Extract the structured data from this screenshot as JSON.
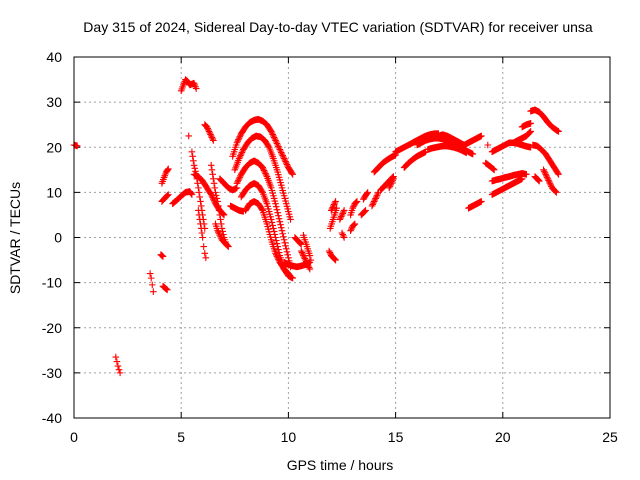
{
  "chart_data": {
    "type": "scatter",
    "title": "Day 315 of 2024, Sidereal Day-to-day VTEC variation (SDTVAR) for receiver unsa",
    "xlabel": "GPS time / hours",
    "ylabel": "SDTVAR / TECUs",
    "xlim": [
      0,
      25
    ],
    "ylim": [
      -40,
      40
    ],
    "xticks": [
      0,
      5,
      10,
      15,
      20,
      25
    ],
    "yticks": [
      -40,
      -30,
      -20,
      -10,
      0,
      10,
      20,
      30,
      40
    ],
    "x_tick_labels": [
      "0",
      "5",
      "10",
      "15",
      "20",
      "25"
    ],
    "y_tick_labels": [
      "-40",
      "-30",
      "-20",
      "-10",
      "0",
      "10",
      "20",
      "30",
      "40"
    ],
    "grid": true,
    "marker": "+",
    "marker_color": "#ff0000",
    "segments": [
      {
        "x": [
          0.0,
          0.15
        ],
        "y": [
          20.5,
          20.3
        ]
      },
      {
        "x": [
          1.95,
          2.0,
          2.05,
          2.1,
          2.15
        ],
        "y": [
          -26.5,
          -27.5,
          -28.5,
          -29.3,
          -30.0
        ]
      },
      {
        "x": [
          3.55,
          3.6,
          3.65,
          3.7
        ],
        "y": [
          -8.0,
          -9.0,
          -10.5,
          -12.0
        ]
      },
      {
        "x": [
          4.05,
          4.15
        ],
        "y": [
          -3.8,
          -4.2
        ]
      },
      {
        "x": [
          4.15,
          4.25,
          4.35
        ],
        "y": [
          -10.8,
          -11.2,
          -11.6
        ]
      },
      {
        "x": [
          4.1,
          4.2,
          4.3,
          4.4
        ],
        "y": [
          12.0,
          13.3,
          14.5,
          15.2
        ]
      },
      {
        "x": [
          4.1,
          4.25,
          4.4
        ],
        "y": [
          8.0,
          8.8,
          9.5
        ]
      },
      {
        "x": [
          4.6,
          4.8,
          5.0,
          5.2,
          5.4,
          5.5
        ],
        "y": [
          7.5,
          8.3,
          9.2,
          10.0,
          10.2,
          9.5
        ]
      },
      {
        "x": [
          5.0,
          5.1,
          5.2,
          5.3,
          5.4,
          5.6,
          5.7
        ],
        "y": [
          32.5,
          33.8,
          35.0,
          34.6,
          33.8,
          34.2,
          33.0
        ]
      },
      {
        "x": [
          5.35
        ],
        "y": [
          22.5
        ]
      },
      {
        "x": [
          5.5,
          5.6,
          5.7,
          5.8,
          5.9,
          6.0,
          6.1
        ],
        "y": [
          19.0,
          16.0,
          14.0,
          11.0,
          8.0,
          5.0,
          2.0
        ]
      },
      {
        "x": [
          5.8,
          5.9,
          6.0,
          6.05,
          6.1,
          6.15
        ],
        "y": [
          6.0,
          3.0,
          0.0,
          -2.0,
          -3.5,
          -4.5
        ]
      },
      {
        "x": [
          5.6,
          5.8,
          6.0,
          6.2,
          6.4,
          6.6,
          6.8,
          7.0
        ],
        "y": [
          14.0,
          13.5,
          12.5,
          11.0,
          9.5,
          7.5,
          6.0,
          5.0
        ]
      },
      {
        "x": [
          6.1,
          6.2,
          6.3,
          6.4,
          6.5
        ],
        "y": [
          25.0,
          24.5,
          23.5,
          22.5,
          21.5
        ]
      },
      {
        "x": [
          6.4,
          6.5,
          6.6,
          6.7,
          6.8,
          6.9,
          7.0,
          7.1
        ],
        "y": [
          16.0,
          13.0,
          10.0,
          8.0,
          5.0,
          2.0,
          0.0,
          -1.5
        ]
      },
      {
        "x": [
          6.6,
          6.7,
          6.8,
          6.9,
          7.0,
          7.1,
          7.2
        ],
        "y": [
          3.0,
          1.5,
          0.5,
          -0.5,
          -1.0,
          -1.5,
          -2.0
        ]
      },
      {
        "x": [
          6.8,
          7.0,
          7.2,
          7.4,
          7.6
        ],
        "y": [
          13.0,
          12.0,
          11.0,
          10.5,
          11.0
        ]
      },
      {
        "x": [
          7.3,
          7.5,
          7.7,
          7.9
        ],
        "y": [
          7.0,
          6.5,
          6.0,
          5.8
        ]
      },
      {
        "x": [
          7.4,
          7.6,
          7.8,
          8.0,
          8.2,
          8.4,
          8.6,
          8.8,
          9.0,
          9.2,
          9.4,
          9.6,
          9.8,
          10.0,
          10.2
        ],
        "y": [
          18.0,
          21.0,
          23.0,
          24.5,
          25.5,
          26.0,
          26.2,
          25.8,
          25.0,
          23.5,
          21.5,
          19.5,
          17.5,
          15.5,
          14.0
        ]
      },
      {
        "x": [
          7.5,
          7.7,
          7.9,
          8.1,
          8.3,
          8.5,
          8.7,
          8.9,
          9.1,
          9.3,
          9.5,
          9.7,
          9.9,
          10.1
        ],
        "y": [
          15.0,
          17.5,
          19.5,
          21.0,
          22.0,
          22.5,
          22.3,
          21.5,
          20.0,
          17.5,
          14.5,
          11.0,
          7.5,
          4.0
        ]
      },
      {
        "x": [
          7.6,
          7.8,
          8.0,
          8.2,
          8.4,
          8.6,
          8.8,
          9.0,
          9.2,
          9.4,
          9.6,
          9.8,
          10.0,
          10.1
        ],
        "y": [
          12.0,
          14.0,
          15.5,
          16.5,
          17.0,
          16.5,
          15.5,
          13.5,
          11.0,
          7.5,
          3.5,
          -0.5,
          -4.5,
          -6.5
        ]
      },
      {
        "x": [
          7.8,
          8.0,
          8.2,
          8.4,
          8.6,
          8.8,
          9.0,
          9.2,
          9.4,
          9.6,
          9.8,
          10.0,
          10.2
        ],
        "y": [
          9.0,
          10.5,
          11.5,
          12.0,
          11.5,
          10.0,
          7.5,
          4.0,
          0.0,
          -4.0,
          -7.0,
          -8.5,
          -9.0
        ]
      },
      {
        "x": [
          8.0,
          8.2,
          8.4,
          8.6,
          8.8,
          9.0,
          9.2,
          9.4,
          9.6,
          9.8,
          10.0
        ],
        "y": [
          6.0,
          7.5,
          8.0,
          7.5,
          6.0,
          3.0,
          -0.5,
          -3.5,
          -5.5,
          -7.0,
          -8.0
        ]
      },
      {
        "x": [
          9.8,
          10.0,
          10.2,
          10.4,
          10.6,
          10.8,
          11.0
        ],
        "y": [
          -5.5,
          -6.0,
          -6.3,
          -6.5,
          -6.3,
          -6.0,
          -5.5
        ]
      },
      {
        "x": [
          10.3,
          10.4,
          10.5,
          10.6
        ],
        "y": [
          0.0,
          -0.5,
          -1.0,
          -1.5
        ]
      },
      {
        "x": [
          10.6,
          10.7,
          10.8,
          10.9,
          11.0
        ],
        "y": [
          -3.0,
          -4.0,
          -5.0,
          -6.0,
          -7.0
        ]
      },
      {
        "x": [
          10.7,
          10.8,
          10.9,
          11.0,
          11.05
        ],
        "y": [
          0.5,
          -1.0,
          -2.5,
          -4.0,
          -5.0
        ]
      },
      {
        "x": [
          11.9,
          12.0,
          12.1,
          12.2
        ],
        "y": [
          -3.0,
          -4.0,
          -4.5,
          -5.0
        ]
      },
      {
        "x": [
          11.95,
          12.05,
          12.15,
          12.25
        ],
        "y": [
          2.0,
          3.5,
          5.0,
          6.5
        ]
      },
      {
        "x": [
          12.0,
          12.1,
          12.2
        ],
        "y": [
          6.0,
          7.0,
          8.0
        ]
      },
      {
        "x": [
          12.4,
          12.5,
          12.6
        ],
        "y": [
          4.0,
          5.0,
          6.0
        ]
      },
      {
        "x": [
          12.5,
          12.6
        ],
        "y": [
          1.0,
          0.0
        ]
      },
      {
        "x": [
          12.9,
          13.0,
          13.1
        ],
        "y": [
          1.5,
          2.5,
          3.0
        ]
      },
      {
        "x": [
          12.9,
          13.0,
          13.1,
          13.2
        ],
        "y": [
          5.0,
          6.5,
          7.5,
          8.0
        ]
      },
      {
        "x": [
          13.4,
          13.5,
          13.6
        ],
        "y": [
          5.0,
          5.5,
          6.0
        ]
      },
      {
        "x": [
          13.5,
          13.6,
          13.7
        ],
        "y": [
          8.5,
          9.3,
          10.0
        ]
      },
      {
        "x": [
          13.9,
          14.0,
          14.1,
          14.2
        ],
        "y": [
          7.0,
          8.0,
          9.0,
          10.0
        ]
      },
      {
        "x": [
          14.0,
          14.2,
          14.4,
          14.6,
          14.8,
          15.0
        ],
        "y": [
          14.5,
          15.5,
          16.5,
          17.2,
          17.8,
          18.3
        ]
      },
      {
        "x": [
          14.3,
          14.5,
          14.7,
          14.9
        ],
        "y": [
          10.5,
          11.5,
          12.5,
          13.5
        ]
      },
      {
        "x": [
          14.7,
          14.8,
          14.9
        ],
        "y": [
          11.0,
          12.0,
          13.0
        ]
      },
      {
        "x": [
          15.0,
          15.2,
          15.4,
          15.6,
          15.8,
          16.0,
          16.2,
          16.4,
          16.6,
          16.8,
          17.0
        ],
        "y": [
          19.0,
          19.5,
          20.0,
          20.5,
          21.0,
          21.5,
          22.0,
          22.5,
          22.8,
          23.0,
          23.0
        ]
      },
      {
        "x": [
          15.4,
          15.6,
          15.8,
          16.0,
          16.2,
          16.4
        ],
        "y": [
          15.5,
          16.5,
          17.3,
          18.0,
          18.5,
          19.0
        ]
      },
      {
        "x": [
          16.0,
          16.2,
          16.4,
          16.6,
          16.8,
          17.0,
          17.2,
          17.4,
          17.6,
          17.8,
          18.0,
          18.2,
          18.4,
          18.6
        ],
        "y": [
          20.5,
          21.0,
          21.5,
          21.8,
          22.0,
          22.0,
          21.8,
          21.5,
          21.0,
          20.5,
          20.0,
          19.5,
          19.0,
          18.5
        ]
      },
      {
        "x": [
          16.5,
          16.7,
          16.9,
          17.1,
          17.3,
          17.5,
          17.7,
          17.9,
          18.1,
          18.3
        ],
        "y": [
          19.5,
          19.8,
          20.0,
          20.2,
          20.3,
          20.2,
          20.0,
          19.7,
          19.3,
          18.8
        ]
      },
      {
        "x": [
          17.0,
          17.2,
          17.4,
          17.6,
          17.8,
          18.0,
          18.2,
          18.4,
          18.6,
          18.8,
          19.0
        ],
        "y": [
          22.5,
          22.8,
          22.5,
          22.0,
          21.5,
          21.0,
          20.5,
          21.0,
          21.5,
          22.0,
          22.5
        ]
      },
      {
        "x": [
          18.4,
          18.6,
          18.8,
          19.0
        ],
        "y": [
          6.5,
          7.0,
          7.5,
          8.0
        ]
      },
      {
        "x": [
          19.2,
          19.4,
          19.6
        ],
        "y": [
          16.5,
          15.8,
          15.0
        ]
      },
      {
        "x": [
          19.3
        ],
        "y": [
          20.5
        ]
      },
      {
        "x": [
          19.5,
          19.7,
          19.9,
          20.1,
          20.3,
          20.5,
          20.7,
          20.9,
          21.1,
          21.3
        ],
        "y": [
          19.0,
          19.5,
          20.0,
          20.5,
          21.0,
          21.0,
          20.8,
          20.5,
          20.2,
          20.0
        ]
      },
      {
        "x": [
          19.5,
          19.7,
          19.9,
          20.1,
          20.3,
          20.5,
          20.7,
          20.9,
          21.1
        ],
        "y": [
          12.5,
          12.8,
          13.0,
          13.3,
          13.5,
          13.8,
          14.0,
          14.2,
          14.0
        ]
      },
      {
        "x": [
          19.5,
          19.7,
          19.9,
          20.1,
          20.3,
          20.5,
          20.7,
          20.9
        ],
        "y": [
          9.5,
          10.0,
          10.5,
          11.0,
          11.5,
          12.0,
          12.5,
          13.0
        ]
      },
      {
        "x": [
          20.5,
          20.7,
          20.9,
          21.1,
          21.2,
          21.3
        ],
        "y": [
          21.0,
          21.5,
          22.0,
          22.5,
          23.0,
          23.5
        ]
      },
      {
        "x": [
          21.3,
          21.5,
          21.7,
          21.9,
          22.1,
          22.3,
          22.5,
          22.6
        ],
        "y": [
          28.0,
          28.3,
          27.8,
          26.8,
          25.5,
          24.5,
          23.8,
          23.5
        ]
      },
      {
        "x": [
          21.4,
          21.6,
          21.8,
          22.0,
          22.2,
          22.4,
          22.6
        ],
        "y": [
          20.5,
          20.3,
          19.5,
          18.5,
          17.0,
          15.5,
          14.0
        ]
      },
      {
        "x": [
          21.5,
          21.7
        ],
        "y": [
          13.5,
          12.5
        ]
      },
      {
        "x": [
          21.9,
          22.0,
          22.1,
          22.2,
          22.3,
          22.4,
          22.5
        ],
        "y": [
          15.0,
          14.0,
          13.0,
          12.0,
          11.0,
          10.5,
          10.0
        ]
      },
      {
        "x": [
          20.9,
          21.1,
          21.3
        ],
        "y": [
          24.5,
          25.0,
          25.3
        ]
      }
    ]
  }
}
